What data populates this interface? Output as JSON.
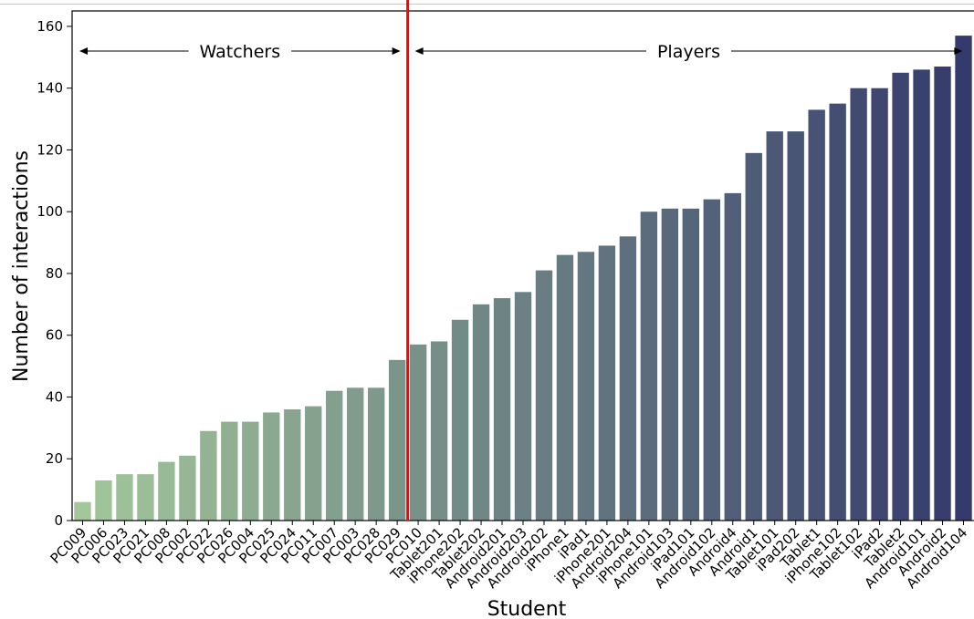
{
  "chart_data": {
    "type": "bar",
    "xlabel": "Student",
    "ylabel": "Number of interactions",
    "ylim": [
      0,
      165
    ],
    "yticks": [
      0,
      20,
      40,
      60,
      80,
      100,
      120,
      140,
      160
    ],
    "grid": false,
    "categories": [
      "PC009",
      "PC006",
      "PC023",
      "PC021",
      "PC008",
      "PC002",
      "PC022",
      "PC026",
      "PC004",
      "PC025",
      "PC024",
      "PC011",
      "PC007",
      "PC003",
      "PC028",
      "PC029",
      "PC010",
      "Tablet201",
      "iPhone202",
      "Tablet202",
      "Android201",
      "Android203",
      "Android202",
      "iPhone1",
      "iPad1",
      "iPhone201",
      "Android204",
      "iPhone101",
      "Android103",
      "iPad101",
      "Android102",
      "Android4",
      "Android1",
      "Tablet101",
      "iPad202",
      "Tablet1",
      "iPhone102",
      "Tablet102",
      "iPad2",
      "Tablet2",
      "Android101",
      "Android2",
      "Android104"
    ],
    "values": [
      6,
      13,
      15,
      15,
      19,
      21,
      29,
      32,
      32,
      35,
      36,
      37,
      42,
      43,
      43,
      52,
      57,
      58,
      65,
      70,
      72,
      74,
      81,
      86,
      87,
      89,
      92,
      100,
      101,
      101,
      104,
      106,
      119,
      126,
      126,
      133,
      135,
      140,
      140,
      145,
      146,
      147,
      157
    ],
    "color_start": "#a3c79a",
    "color_end": "#343a6c",
    "divider": {
      "after_category": "PC029",
      "color": "#ff0000"
    },
    "groups": [
      {
        "label": "Watchers",
        "from": "PC009",
        "to": "PC029"
      },
      {
        "label": "Players",
        "from": "PC010",
        "to": "Android104"
      }
    ]
  }
}
